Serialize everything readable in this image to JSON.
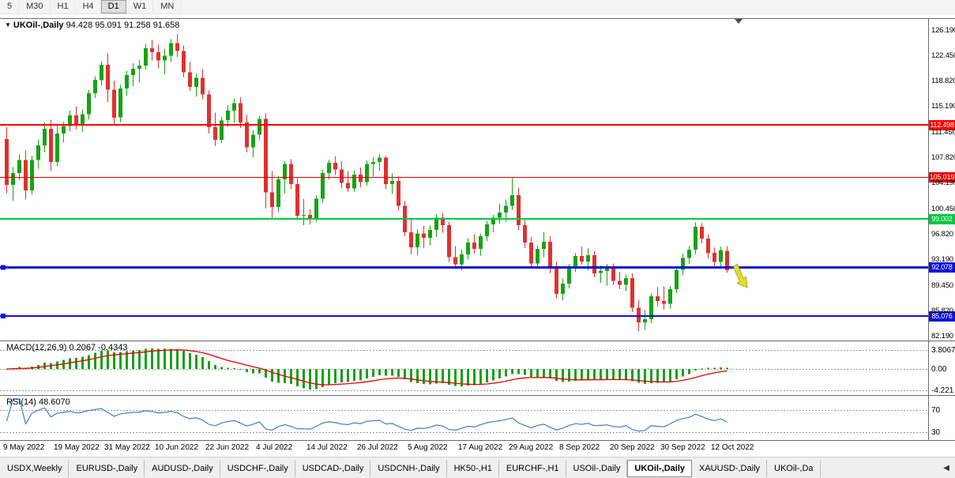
{
  "toolbar": {
    "periods": [
      "5",
      "M30",
      "H1",
      "H4",
      "D1",
      "W1",
      "MN"
    ],
    "active": "D1"
  },
  "chart": {
    "collapse_icon": "▼",
    "symbol_label": "UKOil-,Daily",
    "ohlc_label": "94.428 95.091 91.258 91.658",
    "price_axis": [
      "126.190",
      "122.450",
      "118.820",
      "115.190",
      "111.450",
      "107.820",
      "104.190",
      "100.450",
      "96.820",
      "93.190",
      "89.450",
      "85.820",
      "82.190"
    ],
    "hlines": [
      {
        "price": 112.498,
        "label": "112.498",
        "color": "#ff0000",
        "width": 2,
        "handle": false
      },
      {
        "price": 105.019,
        "label": "105.019",
        "color": "#e00000",
        "width": 1,
        "handle": false
      },
      {
        "price": 99.002,
        "label": "99.002",
        "color": "#00c840",
        "width": 2,
        "handle": false
      },
      {
        "price": 92.078,
        "label": "92.078",
        "color": "#1010d8",
        "width": 3,
        "handle": true
      },
      {
        "price": 85.076,
        "label": "85.076",
        "color": "#1010d8",
        "width": 2,
        "handle": true
      }
    ],
    "candle_colors": {
      "up": "#15a315",
      "down": "#e03030"
    },
    "arrow": {
      "color": "#dce029",
      "edge": "#a9ad1c"
    },
    "date_axis": [
      {
        "i": 0,
        "label": "9 May 2022"
      },
      {
        "i": 8,
        "label": "19 May 2022"
      },
      {
        "i": 16,
        "label": "31 May 2022"
      },
      {
        "i": 24,
        "label": "10 Jun 2022"
      },
      {
        "i": 32,
        "label": "22 Jun 2022"
      },
      {
        "i": 40,
        "label": "4 Jul 2022"
      },
      {
        "i": 48,
        "label": "14 Jul 2022"
      },
      {
        "i": 56,
        "label": "26 Jul 2022"
      },
      {
        "i": 64,
        "label": "5 Aug 2022"
      },
      {
        "i": 72,
        "label": "17 Aug 2022"
      },
      {
        "i": 80,
        "label": "29 Aug 2022"
      },
      {
        "i": 88,
        "label": "8 Sep 2022"
      },
      {
        "i": 96,
        "label": "20 Sep 2022"
      },
      {
        "i": 104,
        "label": "30 Sep 2022"
      },
      {
        "i": 112,
        "label": "12 Oct 2022"
      }
    ]
  },
  "macd": {
    "label": "MACD(12,26,9) 0.2067 -0.4343",
    "grid": [
      3.8067,
      0,
      -4.221
    ],
    "axis_labels": [
      "3.8067",
      "0.00",
      "-4.221"
    ],
    "colors": {
      "histogram": "#18a018",
      "signal": "#e60000"
    }
  },
  "rsi": {
    "label": "RSI(14) 48.6070",
    "grid": [
      70,
      30
    ],
    "axis_labels": [
      "70",
      "30"
    ],
    "color": "#4080c0"
  },
  "tabs": {
    "items": [
      "USDX,Weekly",
      "EURUSD-,Daily",
      "AUDUSD-,Daily",
      "USDCHF-,Daily",
      "USDCAD-,Daily",
      "USDCNH-,Daily",
      "HK50-,H1",
      "EURCHF-,H1",
      "USOil-,Daily",
      "UKOil-,Daily",
      "XAUUSD-,Daily",
      "UKOil-,Da"
    ],
    "active": "UKOil-,Daily",
    "scroll_left_icon": "◀"
  },
  "chart_data": {
    "type": "candlestick",
    "symbol": "UKOil-",
    "timeframe": "Daily",
    "last_ohlc": {
      "open": 94.428,
      "high": 95.091,
      "low": 91.258,
      "close": 91.658
    },
    "y_range": [
      82.19,
      126.19
    ],
    "x_tick_labels": [
      "9 May 2022",
      "19 May 2022",
      "31 May 2022",
      "10 Jun 2022",
      "22 Jun 2022",
      "4 Jul 2022",
      "14 Jul 2022",
      "26 Jul 2022",
      "5 Aug 2022",
      "17 Aug 2022",
      "29 Aug 2022",
      "8 Sep 2022",
      "20 Sep 2022",
      "30 Sep 2022",
      "12 Oct 2022"
    ],
    "hlines": [
      112.498,
      105.019,
      99.002,
      92.078,
      85.076
    ],
    "indicators": [
      {
        "name": "MACD",
        "params": [
          12,
          26,
          9
        ],
        "displayed_values": [
          0.2067,
          -0.4343
        ],
        "axis_range": [
          3.8067,
          -4.221
        ]
      },
      {
        "name": "RSI",
        "params": [
          14
        ],
        "displayed_value": 48.607,
        "levels": [
          70,
          30
        ]
      }
    ],
    "ohlc": [
      [
        110.5,
        112.2,
        102.7,
        103.9
      ],
      [
        103.9,
        106.5,
        101.6,
        105.6
      ],
      [
        105.6,
        108.3,
        104.6,
        107.5
      ],
      [
        107.5,
        108.9,
        101.8,
        103.1
      ],
      [
        103.1,
        108.1,
        102.5,
        107.5
      ],
      [
        107.5,
        110.4,
        106.2,
        109.6
      ],
      [
        109.6,
        112.9,
        108.6,
        112.0
      ],
      [
        112.0,
        113.3,
        105.9,
        107.2
      ],
      [
        107.2,
        112.4,
        106.6,
        111.3
      ],
      [
        111.3,
        113.0,
        110.0,
        112.4
      ],
      [
        112.4,
        114.6,
        111.6,
        113.9
      ],
      [
        113.9,
        115.2,
        111.9,
        112.6
      ],
      [
        112.6,
        114.8,
        111.5,
        114.1
      ],
      [
        114.1,
        117.6,
        113.3,
        117.1
      ],
      [
        117.1,
        119.5,
        116.4,
        119.0
      ],
      [
        119.0,
        121.7,
        118.2,
        121.2
      ],
      [
        121.2,
        122.8,
        115.8,
        117.6
      ],
      [
        117.6,
        118.9,
        112.5,
        113.6
      ],
      [
        113.6,
        118.3,
        112.9,
        117.8
      ],
      [
        117.8,
        120.3,
        116.7,
        119.7
      ],
      [
        119.7,
        121.4,
        118.1,
        120.6
      ],
      [
        120.6,
        121.9,
        118.6,
        121.1
      ],
      [
        121.1,
        124.2,
        120.5,
        123.6
      ],
      [
        123.6,
        124.8,
        121.8,
        123.0
      ],
      [
        123.0,
        124.1,
        120.7,
        121.8
      ],
      [
        121.8,
        123.5,
        119.8,
        122.5
      ],
      [
        122.5,
        124.9,
        121.6,
        124.3
      ],
      [
        124.3,
        125.6,
        122.3,
        123.2
      ],
      [
        123.2,
        124.0,
        119.4,
        120.1
      ],
      [
        120.1,
        121.6,
        117.4,
        118.0
      ],
      [
        118.0,
        119.9,
        116.6,
        119.3
      ],
      [
        119.3,
        120.6,
        116.2,
        116.9
      ],
      [
        116.9,
        117.5,
        111.3,
        112.2
      ],
      [
        112.2,
        114.3,
        109.5,
        110.4
      ],
      [
        110.4,
        113.7,
        109.9,
        113.2
      ],
      [
        113.2,
        115.4,
        112.3,
        114.6
      ],
      [
        114.6,
        116.3,
        112.8,
        115.7
      ],
      [
        115.7,
        116.5,
        112.1,
        112.9
      ],
      [
        112.9,
        114.0,
        108.6,
        109.3
      ],
      [
        109.3,
        111.8,
        107.9,
        111.1
      ],
      [
        111.1,
        113.8,
        110.3,
        113.4
      ],
      [
        113.4,
        114.2,
        100.5,
        102.8
      ],
      [
        102.8,
        105.9,
        98.9,
        100.7
      ],
      [
        100.7,
        105.2,
        100.0,
        104.7
      ],
      [
        104.7,
        107.3,
        102.7,
        106.9
      ],
      [
        106.9,
        107.6,
        103.3,
        104.0
      ],
      [
        104.0,
        104.9,
        98.8,
        99.5
      ],
      [
        99.5,
        101.9,
        98.1,
        99.6
      ],
      [
        99.6,
        100.4,
        98.2,
        99.0
      ],
      [
        99.0,
        102.4,
        98.6,
        101.9
      ],
      [
        101.9,
        106.1,
        101.3,
        105.6
      ],
      [
        105.6,
        107.5,
        104.7,
        107.1
      ],
      [
        107.1,
        108.0,
        105.3,
        106.1
      ],
      [
        106.1,
        107.3,
        103.4,
        104.2
      ],
      [
        104.2,
        105.9,
        102.9,
        103.4
      ],
      [
        103.4,
        106.0,
        102.9,
        105.4
      ],
      [
        105.4,
        106.4,
        103.6,
        104.3
      ],
      [
        104.3,
        107.4,
        103.8,
        106.9
      ],
      [
        106.9,
        107.9,
        105.1,
        107.2
      ],
      [
        107.2,
        108.3,
        105.9,
        107.8
      ],
      [
        107.8,
        108.1,
        103.3,
        104.0
      ],
      [
        104.0,
        105.6,
        102.6,
        104.5
      ],
      [
        104.5,
        105.1,
        100.2,
        100.9
      ],
      [
        100.9,
        101.6,
        96.5,
        97.1
      ],
      [
        97.1,
        98.9,
        93.9,
        94.9
      ],
      [
        94.9,
        97.5,
        93.8,
        96.9
      ],
      [
        96.9,
        98.0,
        94.8,
        96.3
      ],
      [
        96.3,
        98.1,
        95.2,
        97.4
      ],
      [
        97.4,
        99.6,
        96.4,
        99.2
      ],
      [
        99.2,
        99.9,
        97.0,
        98.1
      ],
      [
        98.1,
        98.6,
        92.8,
        93.5
      ],
      [
        93.5,
        95.1,
        91.8,
        92.5
      ],
      [
        92.5,
        94.6,
        91.6,
        93.9
      ],
      [
        93.9,
        96.2,
        93.2,
        95.6
      ],
      [
        95.6,
        96.8,
        94.0,
        94.7
      ],
      [
        94.7,
        96.9,
        93.7,
        96.5
      ],
      [
        96.5,
        98.7,
        95.8,
        98.2
      ],
      [
        98.2,
        99.6,
        97.1,
        99.2
      ],
      [
        99.2,
        101.2,
        98.3,
        99.9
      ],
      [
        99.9,
        101.8,
        98.6,
        100.9
      ],
      [
        100.9,
        105.0,
        100.3,
        102.4
      ],
      [
        102.4,
        103.5,
        97.4,
        98.1
      ],
      [
        98.1,
        99.0,
        94.8,
        95.6
      ],
      [
        95.6,
        96.4,
        91.9,
        92.6
      ],
      [
        92.6,
        95.2,
        91.8,
        94.7
      ],
      [
        94.7,
        97.1,
        93.5,
        95.7
      ],
      [
        95.7,
        96.5,
        91.2,
        92.0
      ],
      [
        92.0,
        92.9,
        87.5,
        88.2
      ],
      [
        88.2,
        90.4,
        87.3,
        89.7
      ],
      [
        89.7,
        92.5,
        89.0,
        92.1
      ],
      [
        92.1,
        94.1,
        91.4,
        93.7
      ],
      [
        93.7,
        95.0,
        92.4,
        92.9
      ],
      [
        92.9,
        94.8,
        91.6,
        93.8
      ],
      [
        93.8,
        94.4,
        90.6,
        91.2
      ],
      [
        91.2,
        92.3,
        89.8,
        91.5
      ],
      [
        91.5,
        92.5,
        89.4,
        91.9
      ],
      [
        91.9,
        92.6,
        89.5,
        90.1
      ],
      [
        90.1,
        91.4,
        88.9,
        89.5
      ],
      [
        89.5,
        91.0,
        88.6,
        90.5
      ],
      [
        90.5,
        91.2,
        85.6,
        86.2
      ],
      [
        86.2,
        87.3,
        82.8,
        84.1
      ],
      [
        84.1,
        85.9,
        83.0,
        84.6
      ],
      [
        84.6,
        88.3,
        84.0,
        87.9
      ],
      [
        87.9,
        89.2,
        86.4,
        87.2
      ],
      [
        87.2,
        89.3,
        86.0,
        86.8
      ],
      [
        86.8,
        89.4,
        86.1,
        88.9
      ],
      [
        88.9,
        92.1,
        88.3,
        91.7
      ],
      [
        91.7,
        94.0,
        90.9,
        93.4
      ],
      [
        93.4,
        95.1,
        92.5,
        94.6
      ],
      [
        94.6,
        98.5,
        93.9,
        97.9
      ],
      [
        97.9,
        98.4,
        95.5,
        96.2
      ],
      [
        96.2,
        96.8,
        93.3,
        94.1
      ],
      [
        94.1,
        94.9,
        92.2,
        92.8
      ],
      [
        92.8,
        95.0,
        91.9,
        94.5
      ],
      [
        94.428,
        95.091,
        91.258,
        91.658
      ]
    ]
  }
}
